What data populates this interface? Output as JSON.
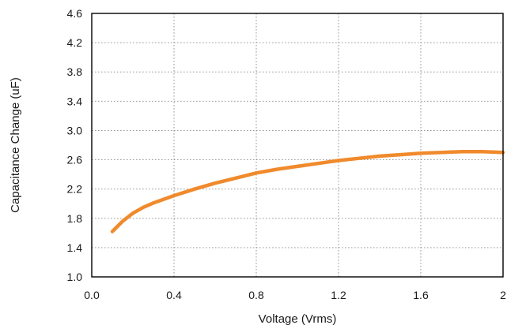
{
  "chart_data": {
    "type": "line",
    "title": "",
    "xlabel": "Voltage (Vrms)",
    "ylabel": "Capacitance Change (uF)",
    "xlim": [
      0,
      2
    ],
    "ylim": [
      1.0,
      4.6
    ],
    "x_ticks": [
      0.0,
      0.4,
      0.8,
      1.2,
      1.6,
      2
    ],
    "x_tick_labels": [
      "0.0",
      "0.4",
      "0.8",
      "1.2",
      "1.6",
      "2"
    ],
    "y_ticks": [
      1.0,
      1.4,
      1.8,
      2.2,
      2.6,
      3.0,
      3.4,
      3.8,
      4.2,
      4.6
    ],
    "y_tick_labels": [
      "1.0",
      "1.4",
      "1.8",
      "2.2",
      "2.6",
      "3.0",
      "3.4",
      "3.8",
      "4.2",
      "4.6"
    ],
    "grid": true,
    "series": [
      {
        "color": "#f08a2c",
        "x": [
          0.1,
          0.15,
          0.2,
          0.25,
          0.3,
          0.4,
          0.5,
          0.6,
          0.7,
          0.8,
          0.9,
          1.0,
          1.1,
          1.2,
          1.3,
          1.4,
          1.5,
          1.6,
          1.7,
          1.8,
          1.9,
          2.0
        ],
        "y": [
          1.62,
          1.76,
          1.87,
          1.95,
          2.01,
          2.11,
          2.2,
          2.28,
          2.35,
          2.42,
          2.47,
          2.51,
          2.55,
          2.59,
          2.62,
          2.65,
          2.67,
          2.69,
          2.7,
          2.71,
          2.71,
          2.7
        ]
      }
    ]
  }
}
